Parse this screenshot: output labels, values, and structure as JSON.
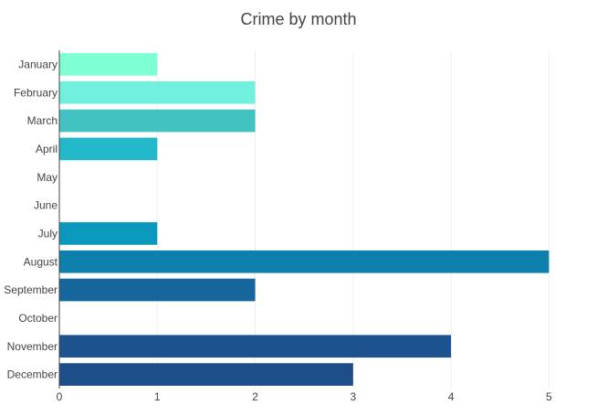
{
  "chart_data": {
    "type": "bar",
    "orientation": "horizontal",
    "title": "Crime by month",
    "xlabel": "",
    "ylabel": "",
    "categories": [
      "January",
      "February",
      "March",
      "April",
      "May",
      "June",
      "July",
      "August",
      "September",
      "October",
      "November",
      "December"
    ],
    "values": [
      1,
      2,
      2,
      1,
      0,
      0,
      1,
      5,
      2,
      0,
      4,
      3
    ],
    "colors": [
      "#7fffd4",
      "#72f0de",
      "#43c2c2",
      "#22b8c9",
      "#1aa6c0",
      "#1299c0",
      "#0a98bd",
      "#0e80ac",
      "#16669e",
      "#1a5a93",
      "#1c528e",
      "#1d4e8a"
    ],
    "xlim": [
      0,
      5.5
    ],
    "xticks": [
      0,
      1,
      2,
      3,
      4,
      5
    ],
    "grid": true,
    "legend": "none"
  }
}
